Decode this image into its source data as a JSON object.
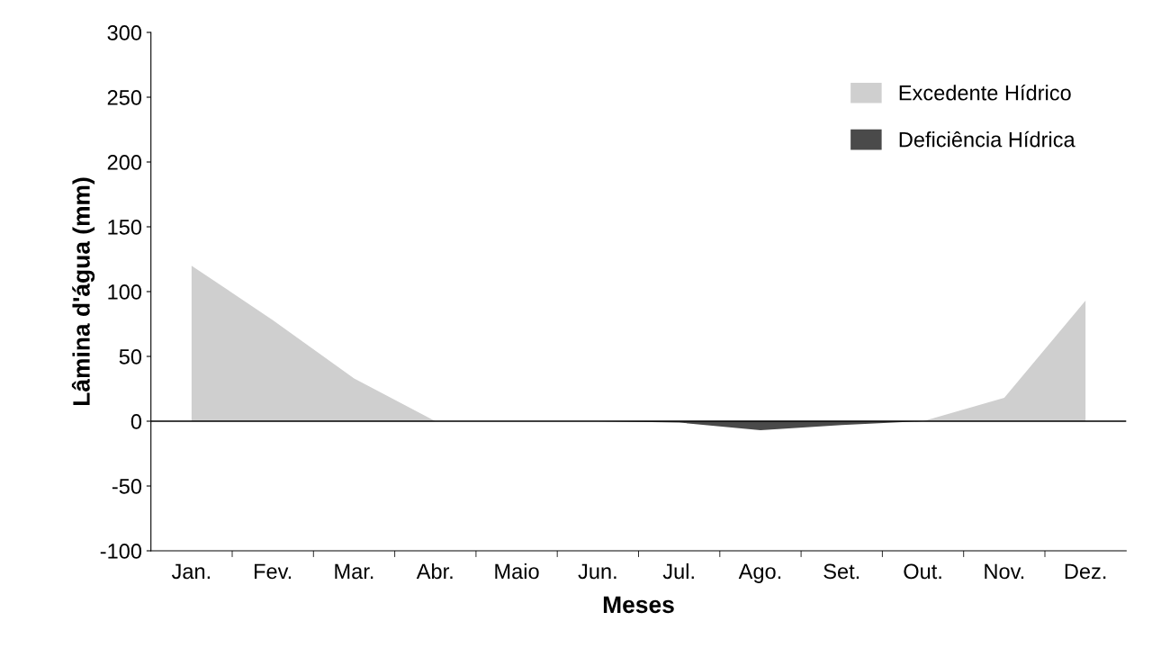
{
  "chart_data": {
    "type": "area",
    "xlabel": "Meses",
    "ylabel": "Lâmina d'água (mm)",
    "categories": [
      "Jan.",
      "Fev.",
      "Mar.",
      "Abr.",
      "Maio",
      "Jun.",
      "Jul.",
      "Ago.",
      "Set.",
      "Out.",
      "Nov.",
      "Dez."
    ],
    "series": [
      {
        "name": "Excedente Hídrico",
        "color": "#cfcfcf",
        "values": [
          120,
          78,
          33,
          0,
          0,
          0,
          0,
          0,
          0,
          0,
          18,
          93
        ]
      },
      {
        "name": "Deficiência Hídrica",
        "color": "#4a4a4a",
        "values": [
          0,
          0,
          0,
          0,
          0,
          0,
          -1,
          -7,
          -3,
          0,
          0,
          0
        ]
      }
    ],
    "ylim": [
      -100,
      300
    ],
    "yticks": [
      -100,
      -50,
      0,
      50,
      100,
      150,
      200,
      250,
      300
    ],
    "ref_lines": [
      {
        "axis": "y",
        "value": 0,
        "color": "#000000"
      }
    ],
    "grid": false,
    "legend": "top right"
  }
}
